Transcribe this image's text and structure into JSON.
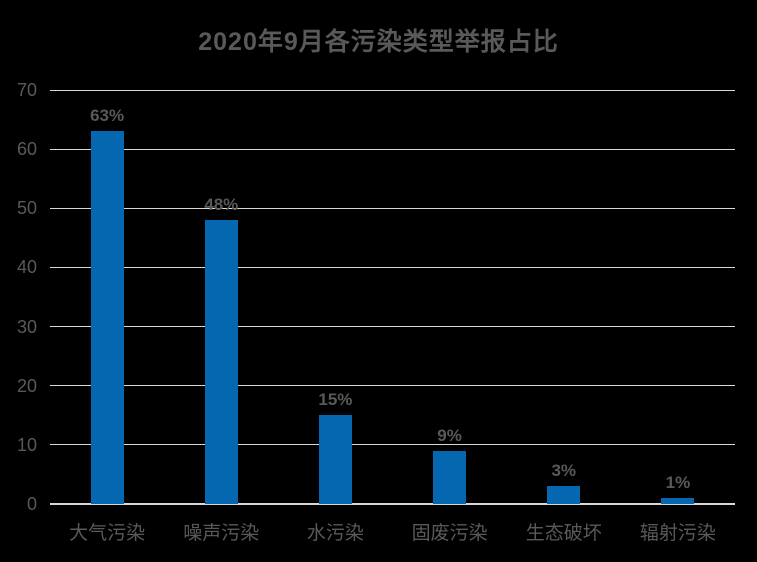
{
  "chart_data": {
    "type": "bar",
    "title": "2020年9月各污染类型举报占比",
    "categories": [
      "大气污染",
      "噪声污染",
      "水污染",
      "固废污染",
      "生态破坏",
      "辐射污染"
    ],
    "values": [
      63,
      48,
      15,
      9,
      3,
      1
    ],
    "value_labels": [
      "63%",
      "48%",
      "15%",
      "9%",
      "3%",
      "1%"
    ],
    "xlabel": "",
    "ylabel": "",
    "ylim": [
      0,
      70
    ],
    "yticks": [
      0,
      10,
      20,
      30,
      40,
      50,
      60,
      70
    ],
    "grid": "horizontal",
    "legend": "none",
    "colors": {
      "background": "#000000",
      "bar": "#0667B1",
      "text": "#595959",
      "gridline": "#D9D9D9"
    }
  }
}
